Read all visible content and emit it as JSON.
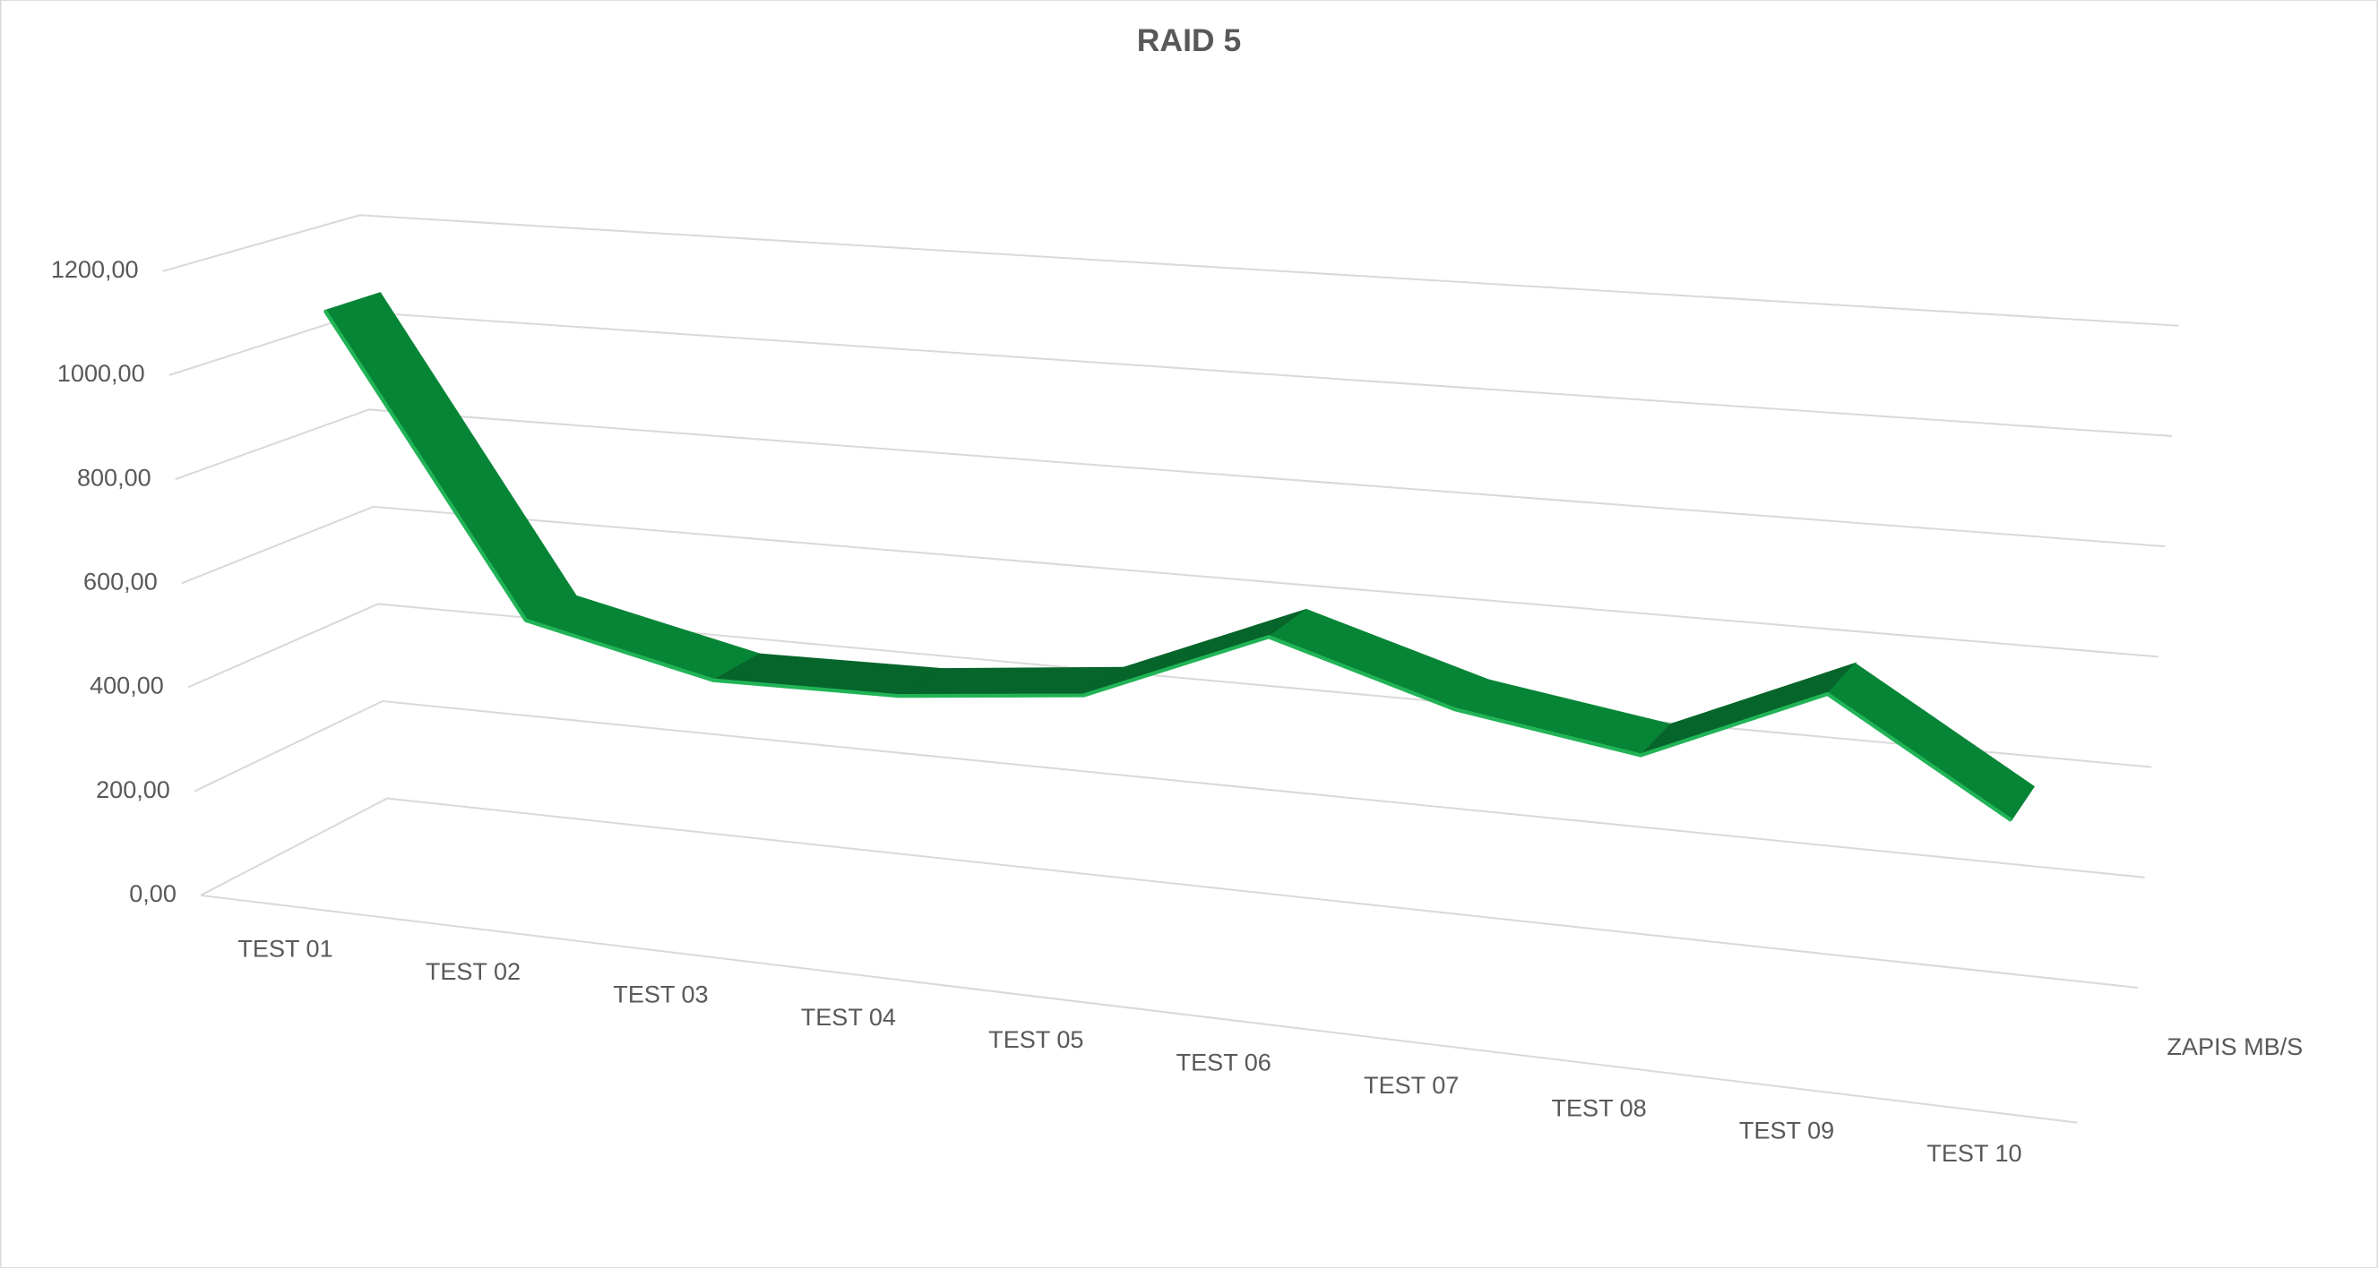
{
  "chart_data": {
    "type": "line3d",
    "title": "RAID 5",
    "categories": [
      "TEST 01",
      "TEST 02",
      "TEST 03",
      "TEST 04",
      "TEST 05",
      "TEST 06",
      "TEST 07",
      "TEST 08",
      "TEST 09",
      "TEST 10"
    ],
    "series": [
      {
        "name": "ZAPIS MB/S",
        "color": "#078536",
        "values": [
          1100,
          530,
          450,
          455,
          490,
          630,
          530,
          480,
          620,
          430
        ]
      }
    ],
    "ylim": [
      0,
      1200
    ],
    "yticks": [
      {
        "value": 0,
        "label": "0,00"
      },
      {
        "value": 200,
        "label": "200,00"
      },
      {
        "value": 400,
        "label": "400,00"
      },
      {
        "value": 600,
        "label": "600,00"
      },
      {
        "value": 800,
        "label": "800,00"
      },
      {
        "value": 1000,
        "label": "1000,00"
      },
      {
        "value": 1200,
        "label": "1200,00"
      }
    ],
    "grid": true
  }
}
